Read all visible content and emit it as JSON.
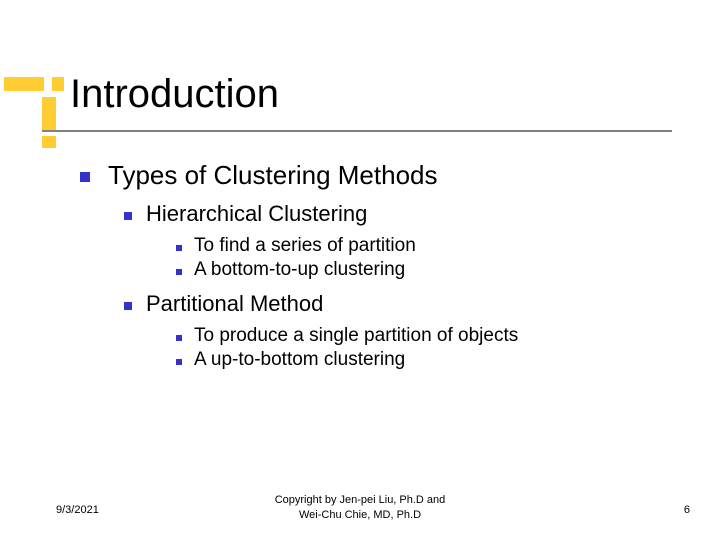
{
  "accent_color": "#ffcc33",
  "bullet_color": "#3333cc",
  "underline_color": "#808080",
  "title": "Introduction",
  "title_fontsize": 40,
  "l1_fontsize": 26,
  "l2_fontsize": 22,
  "l3_fontsize": 19,
  "footer_fontsize": 11,
  "level1": {
    "text": "Types of Clustering Methods",
    "children": [
      {
        "text": "Hierarchical Clustering",
        "children": [
          {
            "text": "To find a series of partition"
          },
          {
            "text": "A bottom-to-up clustering"
          }
        ]
      },
      {
        "text": "Partitional Method",
        "children": [
          {
            "text": "To produce a single partition of objects"
          },
          {
            "text": "A up-to-bottom clustering"
          }
        ]
      }
    ]
  },
  "footer": {
    "date": "9/3/2021",
    "copyright_line1": "Copyright by Jen-pei Liu, Ph.D and",
    "copyright_line2": "Wei-Chu Chie, MD, Ph.D",
    "page_number": "6"
  }
}
